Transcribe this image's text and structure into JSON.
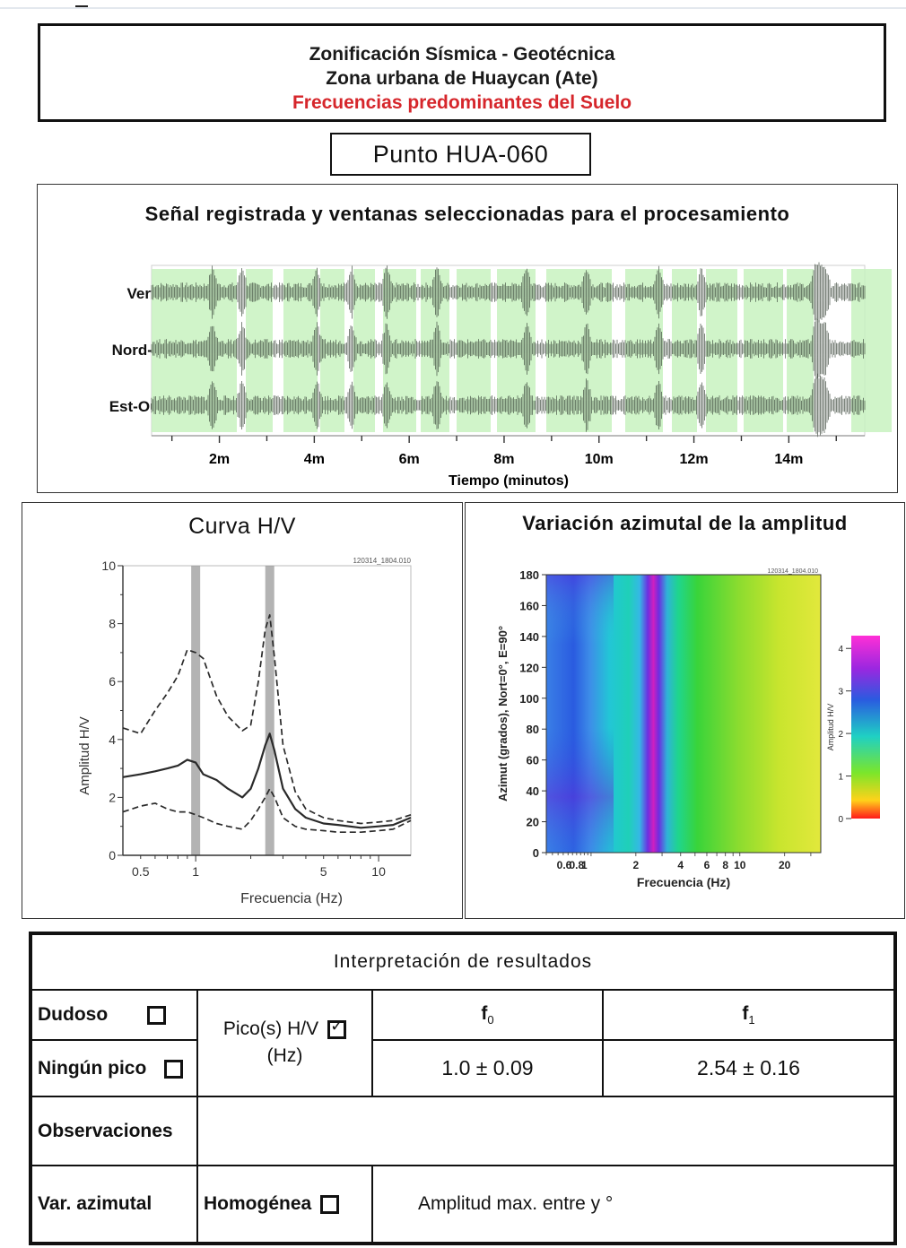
{
  "header": {
    "line1": "Zonificación Sísmica - Geotécnica",
    "line2": "Zona urbana de Huaycan (Ate)",
    "line3": "Frecuencias predominantes del Suelo"
  },
  "punto": "Punto HUA-060",
  "signal": {
    "title": "Señal registrada y ventanas seleccionadas para el procesamiento",
    "channels": [
      "Vertical",
      "Nord-Sud",
      "Est-Ouest"
    ],
    "xlabel": "Tiempo (minutos)",
    "ticks": [
      "2m",
      "4m",
      "6m",
      "8m",
      "10m",
      "12m",
      "14m"
    ]
  },
  "hv": {
    "title": "Curva H/V",
    "file_tag": "120314_1804.010"
  },
  "azimuth": {
    "title": "Variación azimutal de la amplitud",
    "file_tag": "120314_1804.010"
  },
  "chart_data": [
    {
      "type": "line",
      "title": "Curva H/V",
      "xlabel": "Frecuencia (Hz)",
      "ylabel": "Amplitud H/V",
      "xscale": "log",
      "xlim": [
        0.4,
        15
      ],
      "ylim": [
        0,
        10
      ],
      "x_ticks": [
        "0.5",
        "1",
        "5",
        "10"
      ],
      "y_ticks": [
        "0",
        "2",
        "4",
        "6",
        "8",
        "10"
      ],
      "x": [
        0.4,
        0.5,
        0.6,
        0.7,
        0.8,
        0.9,
        1.0,
        1.1,
        1.3,
        1.5,
        1.8,
        2.0,
        2.2,
        2.4,
        2.54,
        2.7,
        3.0,
        3.5,
        4.0,
        5.0,
        6.0,
        8.0,
        10.0,
        12.0,
        15.0
      ],
      "series": [
        {
          "values": [
            2.7,
            2.8,
            2.9,
            3.0,
            3.1,
            3.3,
            3.2,
            2.8,
            2.6,
            2.3,
            2.0,
            2.3,
            3.0,
            3.8,
            4.2,
            3.6,
            2.3,
            1.6,
            1.3,
            1.1,
            1.05,
            0.95,
            1.0,
            1.05,
            1.3
          ],
          "style": "solid"
        },
        {
          "values": [
            4.4,
            4.2,
            5.0,
            5.6,
            6.2,
            7.1,
            7.0,
            6.8,
            5.5,
            4.8,
            4.3,
            4.5,
            6.0,
            7.8,
            8.3,
            6.8,
            3.8,
            2.2,
            1.6,
            1.3,
            1.2,
            1.1,
            1.15,
            1.2,
            1.4
          ],
          "style": "dashed"
        },
        {
          "values": [
            1.5,
            1.7,
            1.8,
            1.6,
            1.5,
            1.5,
            1.4,
            1.3,
            1.1,
            1.0,
            0.9,
            1.2,
            1.6,
            2.0,
            2.3,
            2.0,
            1.3,
            1.0,
            0.9,
            0.85,
            0.8,
            0.8,
            0.85,
            0.9,
            1.2
          ],
          "style": "dashed"
        }
      ],
      "peak_bands": [
        1.0,
        2.54
      ]
    },
    {
      "type": "heatmap",
      "title": "Variación azimutal de la amplitud",
      "xlabel": "Frecuencia (Hz)",
      "ylabel": "Azimut (grados), Nort=0°, E=90°",
      "xscale": "log",
      "xlim": [
        0.5,
        35
      ],
      "ylim": [
        0,
        180
      ],
      "x_ticks": [
        "0.6",
        "0.8",
        "1",
        "2",
        "4",
        "6",
        "8",
        "10",
        "20"
      ],
      "y_ticks": [
        "0",
        "20",
        "40",
        "60",
        "80",
        "100",
        "120",
        "140",
        "160",
        "180"
      ],
      "colorbar_label": "Amplitud H/V",
      "colorbar_ticks": [
        "0",
        "1",
        "2",
        "3",
        "4"
      ]
    }
  ],
  "results": {
    "title": "Interpretación de resultados",
    "dudoso": "Dudoso",
    "ningun_pico": "Ningún pico",
    "picos_line1": "Pico(s) H/V",
    "picos_line2": "(Hz)",
    "f0_label": "f",
    "f0_sub": "0",
    "f1_label": "f",
    "f1_sub": "1",
    "f0_value": "1.0 ± 0.09",
    "f1_value": "2.54 ± 0.16",
    "observaciones": "Observaciones",
    "var_azimutal": "Var. azimutal",
    "homogenea": "Homogénea",
    "amplitud_max": "Amplitud max. entre  y °"
  }
}
